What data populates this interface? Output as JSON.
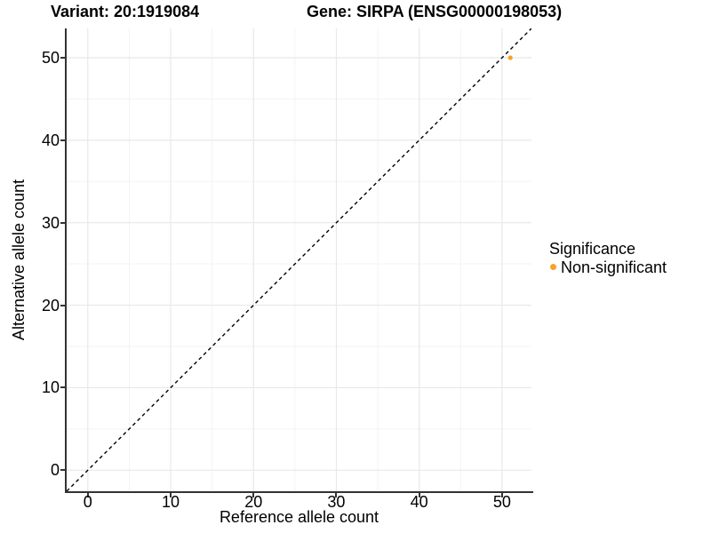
{
  "header": {
    "variant_title": "Variant: 20:1919084",
    "gene_title": "Gene: SIRPA (ENSG00000198053)"
  },
  "chart_data": {
    "type": "scatter",
    "title": "Variant: 20:1919084   Gene: SIRPA (ENSG00000198053)",
    "xlabel": "Reference allele count",
    "ylabel": "Alternative allele count",
    "xlim": [
      -2.55,
      53.55
    ],
    "ylim": [
      -2.55,
      53.55
    ],
    "x_ticks": [
      0,
      10,
      20,
      30,
      40,
      50
    ],
    "y_ticks": [
      0,
      10,
      20,
      30,
      40,
      50
    ],
    "x_minor_ticks": [
      5,
      15,
      25,
      35,
      45
    ],
    "y_minor_ticks": [
      5,
      15,
      25,
      35,
      45
    ],
    "grid": "major+minor",
    "series": [
      {
        "name": "Non-significant",
        "color": "#FAA028",
        "points": [
          {
            "x": 51,
            "y": 50
          }
        ]
      }
    ],
    "reference_line": {
      "type": "identity y=x",
      "style": "dashed",
      "color": "#000000"
    },
    "legend": {
      "title": "Significance",
      "position": "right",
      "items": [
        {
          "label": "Non-significant",
          "color": "#FAA028"
        }
      ]
    }
  },
  "colors": {
    "background": "#FFFFFF",
    "grid_major": "#E8E8E8",
    "grid_minor": "#F3F3F3",
    "axis_line": "#333333",
    "tick": "#333333",
    "text": "#000000",
    "point": "#FAA028"
  }
}
